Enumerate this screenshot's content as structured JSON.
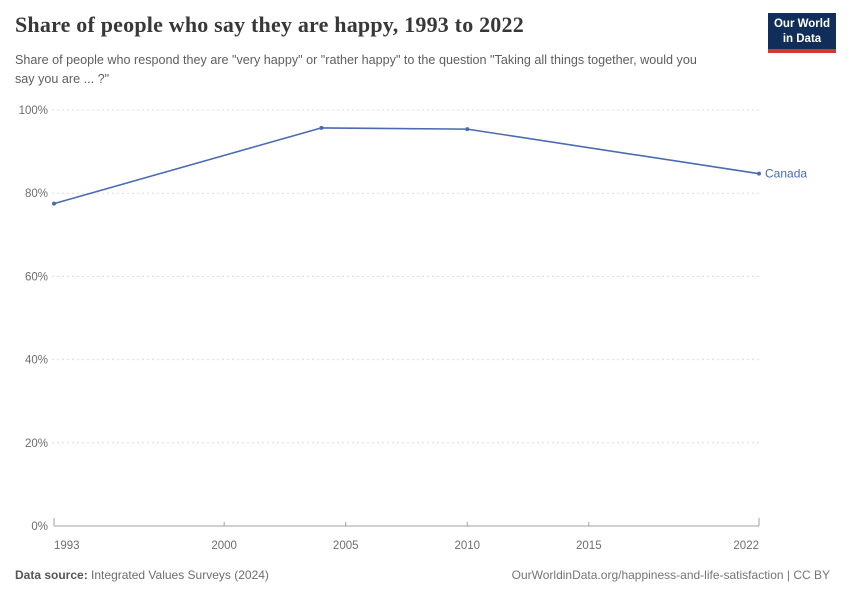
{
  "header": {
    "title": "Share of people who say they are happy, 1993 to 2022",
    "subtitle": "Share of people who respond they are \"very happy\" or \"rather happy\" to the question \"Taking all things together, would you say you are ... ?\"",
    "logo": {
      "line1": "Our World",
      "line2": "in Data",
      "bg_color": "#112e5a",
      "accent_color": "#cf3a31"
    }
  },
  "chart_data": {
    "type": "line",
    "title": "Share of people who say they are happy, 1993 to 2022",
    "x": [
      1993,
      2004,
      2010,
      2022
    ],
    "series": [
      {
        "name": "Canada",
        "color": "#4a6bb2",
        "values": [
          77.5,
          95.7,
          95.4,
          84.7
        ]
      }
    ],
    "end_label": "Canada",
    "x_tick_years": [
      1993,
      2000,
      2005,
      2010,
      2015,
      2022
    ],
    "x_tick_labels": [
      "1993",
      "2000",
      "2005",
      "2010",
      "2015",
      "2022"
    ],
    "y_tick_values": [
      0,
      20,
      40,
      60,
      80,
      100
    ],
    "y_tick_labels": [
      "0%",
      "20%",
      "40%",
      "60%",
      "80%",
      "100%"
    ],
    "xlim": [
      1993,
      2022
    ],
    "ylim": [
      0,
      100
    ],
    "grid": "horizontal-dashed",
    "legend_position": "end-of-line-label"
  },
  "footer": {
    "source_label": "Data source:",
    "source_value": "Integrated Values Surveys (2024)",
    "attribution": "OurWorldinData.org/happiness-and-life-satisfaction | CC BY"
  }
}
